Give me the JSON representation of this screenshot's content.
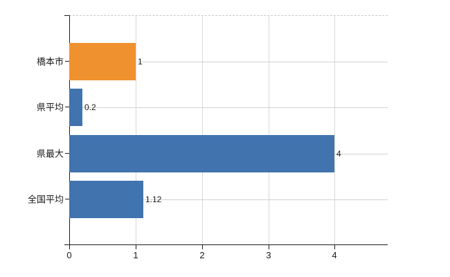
{
  "chart_data": {
    "type": "bar",
    "orientation": "horizontal",
    "title": "",
    "xlabel": "",
    "ylabel": "",
    "categories": [
      "橋本市",
      "県平均",
      "県最大",
      "全国平均"
    ],
    "values": [
      1,
      0.2,
      4,
      1.12
    ],
    "value_labels": [
      "1",
      "0.2",
      "4",
      "1.12"
    ],
    "bar_colors": [
      "#f0912f",
      "#4173af",
      "#4173af",
      "#4173af"
    ],
    "x_ticks": [
      0,
      1,
      2,
      3,
      4
    ],
    "x_tick_labels": [
      "0",
      "1",
      "2",
      "3",
      "4"
    ],
    "xlim": [
      0,
      4.8
    ],
    "grid": true,
    "legend": false
  },
  "colors": {
    "accent_orange": "#f0912f",
    "accent_blue": "#4173af",
    "axis": "#1a1a1a",
    "grid_vertical": "#d8d8d8",
    "grid_horizontal": "#cdd4cc",
    "plot_top_border_dashed": "#c9c9c9",
    "background": "#ffffff"
  }
}
